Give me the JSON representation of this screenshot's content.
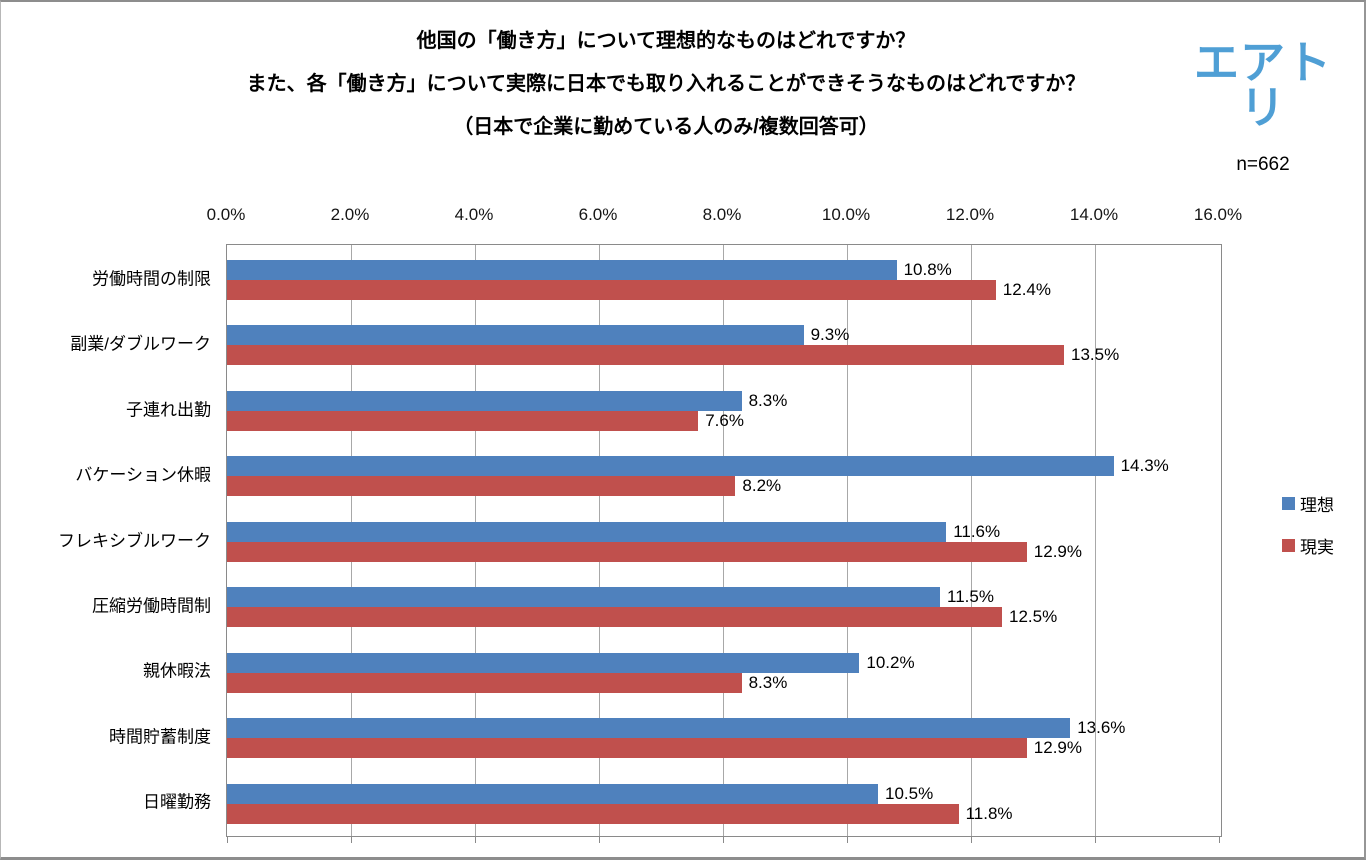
{
  "header": {
    "title_line1": "他国の「働き方」について理想的なものはどれですか？",
    "title_line2": "また、各「働き方」について実際に日本でも取り入れることができそうなものはどれですか？",
    "title_line3": "（日本で企業に勤めている人のみ/複数回答可）",
    "logo_text": "エアトリ",
    "logo_color": "#4f9fd5",
    "sample_size": "n=662"
  },
  "chart_data": {
    "type": "bar",
    "orientation": "horizontal",
    "title": "他国の「働き方」について理想的なものはどれですか？また、各「働き方」について実際に日本でも取り入れることができそうなものはどれですか？（日本で企業に勤めている人のみ/複数回答可）",
    "categories": [
      "労働時間の制限",
      "副業/ダブルワーク",
      "子連れ出勤",
      "バケーション休暇",
      "フレキシブルワーク",
      "圧縮労働時間制",
      "親休暇法",
      "時間貯蓄制度",
      "日曜勤務"
    ],
    "series": [
      {
        "name": "理想",
        "color": "#4f81bd",
        "values": [
          10.8,
          9.3,
          8.3,
          14.3,
          11.6,
          11.5,
          10.2,
          13.6,
          10.5
        ]
      },
      {
        "name": "現実",
        "color": "#c0504d",
        "values": [
          12.4,
          13.5,
          7.6,
          8.2,
          12.9,
          12.5,
          8.3,
          12.9,
          11.8
        ]
      }
    ],
    "value_label_suffix": "%",
    "xlim": [
      0,
      16
    ],
    "x_ticks": [
      "0.0%",
      "2.0%",
      "4.0%",
      "6.0%",
      "8.0%",
      "10.0%",
      "12.0%",
      "14.0%",
      "16.0%"
    ],
    "grid": true,
    "legend_position": "right",
    "colors": {
      "gridline": "#a8a8a8",
      "plot_border": "#8a8a8a",
      "label_text": "#000000"
    }
  }
}
